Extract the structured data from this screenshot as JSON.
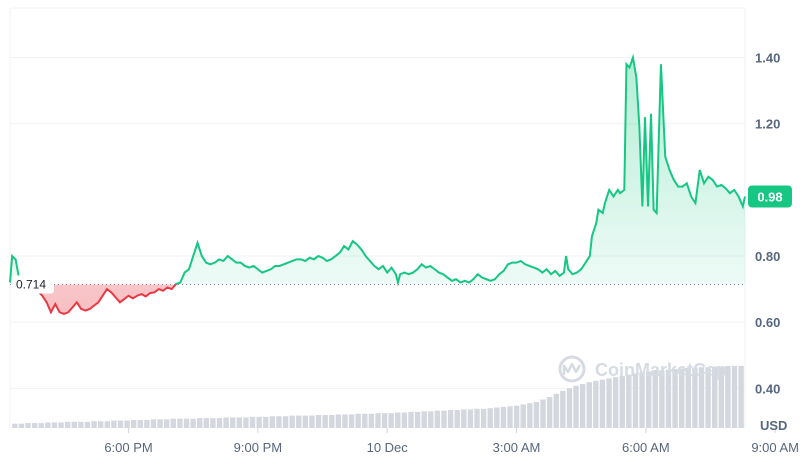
{
  "chart_data": {
    "type": "area",
    "title": "",
    "xlabel": "",
    "ylabel": "",
    "unit": "USD",
    "watermark": "CoinMarketCap",
    "reference_value": 0.714,
    "reference_label": "0.714",
    "current_value": 0.98,
    "current_label": "0.98",
    "ylim": [
      0.28,
      1.55
    ],
    "yticks": [
      0.4,
      0.6,
      0.8,
      0.98,
      1.2,
      1.4
    ],
    "ytick_labels": [
      "0.40",
      "0.60",
      "0.80",
      "0.98",
      "1.20",
      "1.40"
    ],
    "xticks": [
      {
        "hour": 18,
        "label": "6:00 PM"
      },
      {
        "hour": 21,
        "label": "9:00 PM"
      },
      {
        "hour": 24,
        "label": "10 Dec"
      },
      {
        "hour": 27,
        "label": "3:00 AM"
      },
      {
        "hour": 30,
        "label": "6:00 AM"
      },
      {
        "hour": 33,
        "label": "9:00 AM"
      }
    ],
    "grid": true,
    "colors": {
      "up": "#16c784",
      "down": "#ea3943",
      "grid": "#eff2f5",
      "axis_text": "#58667e",
      "volume": "#d4d8de"
    },
    "price_series": {
      "name": "Price",
      "points": [
        [
          15.25,
          0.72
        ],
        [
          15.3,
          0.8
        ],
        [
          15.38,
          0.79
        ],
        [
          15.45,
          0.74
        ],
        [
          15.55,
          0.72
        ],
        [
          15.7,
          0.715
        ],
        [
          15.85,
          0.7
        ],
        [
          16.0,
          0.68
        ],
        [
          16.1,
          0.66
        ],
        [
          16.2,
          0.63
        ],
        [
          16.3,
          0.655
        ],
        [
          16.4,
          0.63
        ],
        [
          16.5,
          0.625
        ],
        [
          16.6,
          0.63
        ],
        [
          16.7,
          0.645
        ],
        [
          16.8,
          0.66
        ],
        [
          16.9,
          0.64
        ],
        [
          17.0,
          0.635
        ],
        [
          17.1,
          0.64
        ],
        [
          17.2,
          0.65
        ],
        [
          17.3,
          0.66
        ],
        [
          17.4,
          0.68
        ],
        [
          17.5,
          0.7
        ],
        [
          17.6,
          0.69
        ],
        [
          17.7,
          0.675
        ],
        [
          17.8,
          0.66
        ],
        [
          17.9,
          0.67
        ],
        [
          18.0,
          0.68
        ],
        [
          18.1,
          0.672
        ],
        [
          18.2,
          0.68
        ],
        [
          18.3,
          0.685
        ],
        [
          18.4,
          0.678
        ],
        [
          18.5,
          0.688
        ],
        [
          18.6,
          0.69
        ],
        [
          18.7,
          0.7
        ],
        [
          18.8,
          0.695
        ],
        [
          18.9,
          0.705
        ],
        [
          19.0,
          0.7
        ],
        [
          19.1,
          0.715
        ],
        [
          19.2,
          0.72
        ],
        [
          19.3,
          0.75
        ],
        [
          19.4,
          0.76
        ],
        [
          19.5,
          0.8
        ],
        [
          19.6,
          0.84
        ],
        [
          19.7,
          0.8
        ],
        [
          19.8,
          0.78
        ],
        [
          19.9,
          0.775
        ],
        [
          20.0,
          0.78
        ],
        [
          20.1,
          0.79
        ],
        [
          20.2,
          0.785
        ],
        [
          20.3,
          0.8
        ],
        [
          20.4,
          0.79
        ],
        [
          20.5,
          0.78
        ],
        [
          20.6,
          0.78
        ],
        [
          20.7,
          0.77
        ],
        [
          20.8,
          0.765
        ],
        [
          20.9,
          0.77
        ],
        [
          21.0,
          0.76
        ],
        [
          21.1,
          0.75
        ],
        [
          21.2,
          0.755
        ],
        [
          21.3,
          0.76
        ],
        [
          21.4,
          0.77
        ],
        [
          21.5,
          0.77
        ],
        [
          21.6,
          0.775
        ],
        [
          21.7,
          0.78
        ],
        [
          21.8,
          0.785
        ],
        [
          21.9,
          0.79
        ],
        [
          22.0,
          0.79
        ],
        [
          22.1,
          0.785
        ],
        [
          22.2,
          0.795
        ],
        [
          22.3,
          0.79
        ],
        [
          22.4,
          0.8
        ],
        [
          22.5,
          0.795
        ],
        [
          22.6,
          0.785
        ],
        [
          22.7,
          0.79
        ],
        [
          22.8,
          0.8
        ],
        [
          22.9,
          0.81
        ],
        [
          23.0,
          0.83
        ],
        [
          23.1,
          0.82
        ],
        [
          23.2,
          0.845
        ],
        [
          23.3,
          0.835
        ],
        [
          23.4,
          0.82
        ],
        [
          23.5,
          0.8
        ],
        [
          23.6,
          0.785
        ],
        [
          23.7,
          0.77
        ],
        [
          23.8,
          0.76
        ],
        [
          23.9,
          0.77
        ],
        [
          24.0,
          0.75
        ],
        [
          24.1,
          0.765
        ],
        [
          24.2,
          0.745
        ],
        [
          24.25,
          0.72
        ],
        [
          24.3,
          0.745
        ],
        [
          24.4,
          0.75
        ],
        [
          24.5,
          0.745
        ],
        [
          24.6,
          0.75
        ],
        [
          24.7,
          0.76
        ],
        [
          24.8,
          0.775
        ],
        [
          24.9,
          0.765
        ],
        [
          25.0,
          0.77
        ],
        [
          25.1,
          0.76
        ],
        [
          25.2,
          0.75
        ],
        [
          25.3,
          0.745
        ],
        [
          25.4,
          0.735
        ],
        [
          25.5,
          0.725
        ],
        [
          25.6,
          0.73
        ],
        [
          25.7,
          0.72
        ],
        [
          25.8,
          0.725
        ],
        [
          25.9,
          0.72
        ],
        [
          26.0,
          0.73
        ],
        [
          26.1,
          0.745
        ],
        [
          26.2,
          0.735
        ],
        [
          26.3,
          0.73
        ],
        [
          26.4,
          0.725
        ],
        [
          26.5,
          0.73
        ],
        [
          26.6,
          0.745
        ],
        [
          26.7,
          0.755
        ],
        [
          26.8,
          0.775
        ],
        [
          26.9,
          0.78
        ],
        [
          27.0,
          0.78
        ],
        [
          27.1,
          0.785
        ],
        [
          27.2,
          0.775
        ],
        [
          27.3,
          0.77
        ],
        [
          27.4,
          0.765
        ],
        [
          27.5,
          0.76
        ],
        [
          27.6,
          0.75
        ],
        [
          27.7,
          0.76
        ],
        [
          27.8,
          0.745
        ],
        [
          27.9,
          0.755
        ],
        [
          28.0,
          0.74
        ],
        [
          28.1,
          0.75
        ],
        [
          28.15,
          0.8
        ],
        [
          28.2,
          0.76
        ],
        [
          28.3,
          0.745
        ],
        [
          28.4,
          0.75
        ],
        [
          28.5,
          0.76
        ],
        [
          28.6,
          0.78
        ],
        [
          28.7,
          0.8
        ],
        [
          28.75,
          0.86
        ],
        [
          28.85,
          0.9
        ],
        [
          28.9,
          0.94
        ],
        [
          29.0,
          0.93
        ],
        [
          29.05,
          0.96
        ],
        [
          29.15,
          1.0
        ],
        [
          29.25,
          0.98
        ],
        [
          29.35,
          1.0
        ],
        [
          29.4,
          0.99
        ],
        [
          29.5,
          1.0
        ],
        [
          29.55,
          1.38
        ],
        [
          29.62,
          1.37
        ],
        [
          29.7,
          1.4
        ],
        [
          29.78,
          1.34
        ],
        [
          29.85,
          1.19
        ],
        [
          29.92,
          0.95
        ],
        [
          29.98,
          1.22
        ],
        [
          30.05,
          0.95
        ],
        [
          30.12,
          1.23
        ],
        [
          30.18,
          0.94
        ],
        [
          30.25,
          0.93
        ],
        [
          30.35,
          1.38
        ],
        [
          30.45,
          1.1
        ],
        [
          30.55,
          1.06
        ],
        [
          30.65,
          1.03
        ],
        [
          30.75,
          1.01
        ],
        [
          30.85,
          1.01
        ],
        [
          30.95,
          1.02
        ],
        [
          31.05,
          0.98
        ],
        [
          31.15,
          0.96
        ],
        [
          31.25,
          1.06
        ],
        [
          31.35,
          1.02
        ],
        [
          31.45,
          1.04
        ],
        [
          31.55,
          1.03
        ],
        [
          31.65,
          1.01
        ],
        [
          31.75,
          1.015
        ],
        [
          31.85,
          1.005
        ],
        [
          31.95,
          0.99
        ],
        [
          32.05,
          1.0
        ],
        [
          32.15,
          0.98
        ],
        [
          32.25,
          0.95
        ],
        [
          32.3,
          0.98
        ]
      ]
    },
    "volume_series": {
      "name": "Volume",
      "x_start": 15.3,
      "x_end": 32.3,
      "values": [
        0.07,
        0.07,
        0.08,
        0.08,
        0.08,
        0.09,
        0.09,
        0.09,
        0.1,
        0.1,
        0.1,
        0.1,
        0.11,
        0.11,
        0.11,
        0.12,
        0.12,
        0.12,
        0.13,
        0.13,
        0.13,
        0.14,
        0.14,
        0.14,
        0.15,
        0.15,
        0.15,
        0.15,
        0.16,
        0.16,
        0.16,
        0.16,
        0.17,
        0.17,
        0.17,
        0.17,
        0.18,
        0.18,
        0.18,
        0.19,
        0.19,
        0.19,
        0.2,
        0.2,
        0.2,
        0.2,
        0.21,
        0.21,
        0.21,
        0.22,
        0.22,
        0.22,
        0.23,
        0.23,
        0.23,
        0.24,
        0.24,
        0.24,
        0.25,
        0.25,
        0.26,
        0.26,
        0.27,
        0.27,
        0.28,
        0.28,
        0.29,
        0.29,
        0.3,
        0.3,
        0.31,
        0.31,
        0.32,
        0.33,
        0.34,
        0.35,
        0.36,
        0.38,
        0.4,
        0.42,
        0.46,
        0.5,
        0.55,
        0.6,
        0.64,
        0.68,
        0.71,
        0.74,
        0.76,
        0.78,
        0.8,
        0.82,
        0.84,
        0.86,
        0.88,
        0.9,
        0.91,
        0.92,
        0.93,
        0.94,
        0.95,
        0.96,
        0.97,
        0.97,
        0.98,
        0.98,
        0.99,
        0.99,
        1.0,
        1.0,
        1.0
      ]
    }
  }
}
